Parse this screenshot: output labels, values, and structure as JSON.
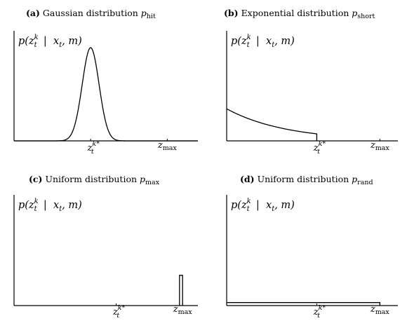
{
  "chart_data": [
    {
      "type": "line",
      "panel_label": "(a)",
      "title": "Gaussian distribution",
      "title_sub": "hit",
      "ylabel": "p(z_t^k | x_t, m)",
      "xticks": [
        {
          "label": "z_t^{k*}",
          "x": 0.5
        },
        {
          "label": "z_max",
          "x": 1.0
        }
      ],
      "xlim": [
        0,
        1.2
      ],
      "ylim": [
        0,
        1
      ],
      "curve": {
        "kind": "gaussian",
        "mean": 0.5,
        "sd": 0.055,
        "peak": 1.0
      }
    },
    {
      "type": "line",
      "panel_label": "(b)",
      "title": "Exponential distribution",
      "title_sub": "short",
      "ylabel": "p(z_t^k | x_t, m)",
      "xticks": [
        {
          "label": "z_t^{k*}",
          "x": 0.5
        },
        {
          "label": "z_max",
          "x": 0.85
        }
      ],
      "xlim": [
        0,
        0.95
      ],
      "ylim": [
        0,
        1
      ],
      "curve": {
        "kind": "exponential",
        "start": 0.32,
        "end_x": 0.5,
        "end": 0.07
      }
    },
    {
      "type": "line",
      "panel_label": "(c)",
      "title": "Uniform distribution",
      "title_sub": "max",
      "ylabel": "p(z_t^k | x_t, m)",
      "xticks": [
        {
          "label": "z_t^{k*}",
          "x": 0.5
        },
        {
          "label": "z_max",
          "x": 0.825
        }
      ],
      "xlim": [
        0,
        0.9
      ],
      "ylim": [
        0,
        1
      ],
      "curve": {
        "kind": "spike",
        "x0": 0.81,
        "x1": 0.825,
        "height": 0.3
      }
    },
    {
      "type": "line",
      "panel_label": "(d)",
      "title": "Uniform distribution",
      "title_sub": "rand",
      "ylabel": "p(z_t^k | x_t, m)",
      "xticks": [
        {
          "label": "z_t^{k*}",
          "x": 0.5
        },
        {
          "label": "z_max",
          "x": 0.85
        }
      ],
      "xlim": [
        0,
        0.95
      ],
      "ylim": [
        0,
        1
      ],
      "curve": {
        "kind": "uniform",
        "x_end": 0.85,
        "height": 0.03
      }
    }
  ]
}
